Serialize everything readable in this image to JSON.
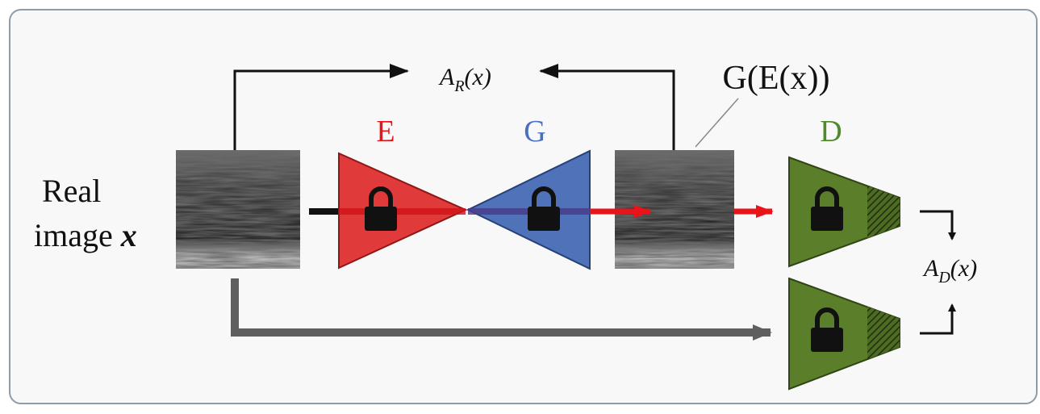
{
  "input_label": {
    "line1": "Real",
    "line2": "image",
    "var": "x"
  },
  "reconstruction_score": {
    "base": "A",
    "sub": "R",
    "arg": "(x)"
  },
  "encoder": "E",
  "generator": "G",
  "reconstruction": "G(E(x))",
  "discriminator": "D",
  "discriminator_score": {
    "base": "A",
    "sub": "D",
    "arg": "(x)"
  }
}
